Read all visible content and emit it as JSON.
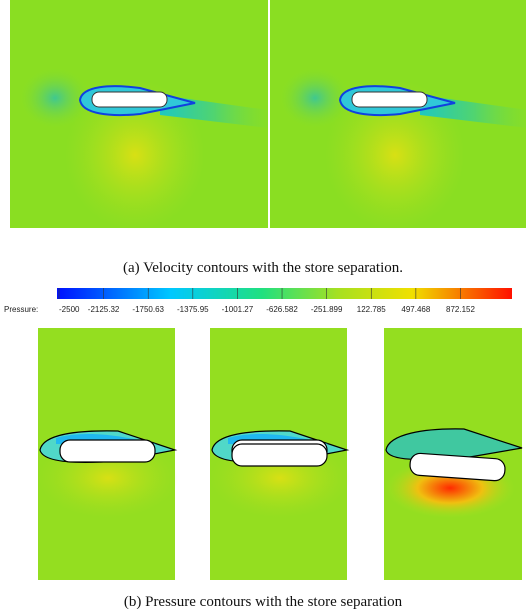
{
  "figure": {
    "caption_a": "(a)    Velocity contours with the store separation.",
    "colorbar": {
      "label": "Pressure:",
      "ticks": [
        -2500,
        -2125.32,
        -1750.63,
        -1375.95,
        -1001.27,
        -626.582,
        -251.899,
        122.785,
        497.468,
        872.152
      ]
    },
    "caption_b": "(b)    Pressure contours with the store separation"
  }
}
